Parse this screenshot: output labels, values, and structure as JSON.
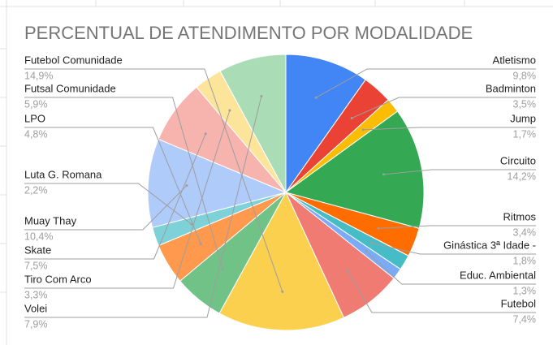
{
  "chart_data": {
    "type": "pie",
    "title": "PERCENTUAL DE ATENDIMENTO POR MODALIDADE",
    "categories": [
      "Atletismo",
      "Badminton",
      "Jump",
      "Circuito",
      "Ritmos",
      "Ginástica 3ª Idade -",
      "Educ. Ambiental",
      "Futebol",
      "Futebol Comunidade",
      "Futsal Comunidade",
      "LPO",
      "Luta G. Romana",
      "Muay Thay",
      "Skate",
      "Tiro Com Arco",
      "Volei"
    ],
    "values": [
      9.8,
      3.5,
      1.7,
      14.2,
      3.4,
      1.8,
      1.3,
      7.4,
      14.9,
      5.9,
      4.8,
      2.2,
      10.4,
      7.5,
      3.3,
      7.9
    ],
    "value_labels": [
      "9,8%",
      "3,5%",
      "1,7%",
      "14,2%",
      "3,4%",
      "1,8%",
      "1,3%",
      "7,4%",
      "14,9%",
      "5,9%",
      "4,8%",
      "2,2%",
      "10,4%",
      "7,5%",
      "3,3%",
      "7,9%"
    ],
    "colors": [
      "#4285f4",
      "#ea4335",
      "#fbbc04",
      "#34a853",
      "#ff6d01",
      "#46bdc6",
      "#7baaf7",
      "#f07b72",
      "#fcd04f",
      "#71c287",
      "#ff994d",
      "#7ed1d7",
      "#aecbfa",
      "#f7b4ae",
      "#fde49b",
      "#aadcb6"
    ]
  }
}
